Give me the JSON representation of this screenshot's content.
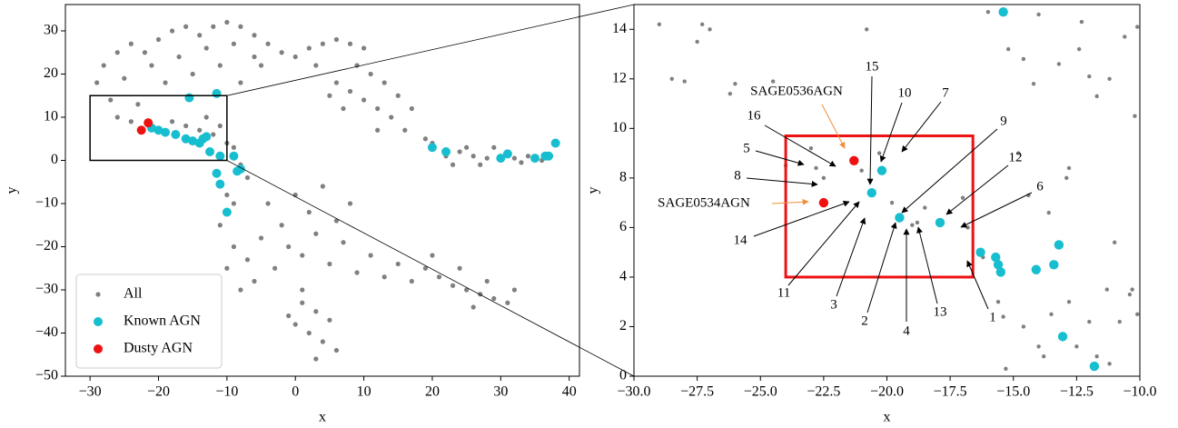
{
  "chart_data": [
    {
      "type": "scatter",
      "xlabel": "x",
      "ylabel": "y",
      "xlim": [
        -33.6,
        41.5
      ],
      "ylim": [
        -50,
        36.1
      ],
      "xticks": [
        {
          "value": -30,
          "label": "−30"
        },
        {
          "value": -20,
          "label": "−20"
        },
        {
          "value": -10,
          "label": "−10"
        },
        0,
        10,
        20,
        30,
        40
      ],
      "yticks": [
        {
          "value": -50,
          "label": "−50"
        },
        {
          "value": -40,
          "label": "−40"
        },
        {
          "value": -30,
          "label": "−30"
        },
        {
          "value": -20,
          "label": "−20"
        },
        {
          "value": -10,
          "label": "−10"
        },
        0,
        10,
        20,
        30
      ],
      "legend": "lower left",
      "series": [
        {
          "name": "All",
          "color": "#808080",
          "x": [
            -28,
            -26,
            -24,
            -22,
            -20,
            -18,
            -16,
            -14,
            -12,
            -10,
            -8,
            -6,
            -4,
            -2,
            0,
            2,
            4,
            6,
            8,
            10,
            -25,
            -21,
            -17,
            -13,
            -9,
            -5,
            -11,
            -15,
            -19,
            -27,
            -29,
            -23,
            -8,
            -6,
            3,
            -26,
            -24,
            -18,
            -16,
            -14,
            -12,
            -10,
            -9,
            -11,
            -13,
            -8,
            -7,
            -10,
            -9,
            -11,
            6,
            8,
            10,
            12,
            14,
            11,
            9,
            13,
            15,
            17,
            7,
            5,
            12,
            16,
            19,
            22,
            24,
            26,
            28,
            30,
            32,
            34,
            36,
            25,
            27,
            31,
            33,
            20,
            23,
            29,
            -11,
            -9,
            -7,
            -5,
            -3,
            -1,
            1,
            3,
            5,
            7,
            9,
            11,
            13,
            -10,
            -6,
            -2,
            2,
            6,
            0,
            4,
            8,
            -4,
            -8,
            15,
            17,
            1,
            3,
            5,
            2,
            4,
            0,
            6,
            3,
            1,
            -1,
            19,
            21,
            23,
            25,
            27,
            29,
            31,
            20,
            24,
            28,
            26,
            32
          ],
          "y": [
            22,
            25,
            27,
            25,
            28,
            30,
            31,
            29,
            31,
            32,
            31,
            29,
            27,
            25,
            24,
            26,
            27,
            28,
            27,
            26,
            19,
            22,
            24,
            26,
            27,
            22,
            22,
            20,
            18,
            14,
            18,
            13,
            18,
            24,
            22,
            10,
            9,
            9,
            8,
            7,
            6,
            4,
            3,
            8,
            10,
            -1,
            -4,
            -8,
            -10,
            -6,
            18,
            16,
            14,
            12,
            10,
            20,
            22,
            18,
            15,
            12,
            12,
            15,
            7,
            7,
            5,
            1,
            2,
            1,
            0.5,
            1,
            0.5,
            1,
            0,
            3,
            -1,
            2,
            -0.5,
            4,
            -1,
            3,
            -15,
            -20,
            -23,
            -18,
            -25,
            -20,
            -22,
            -17,
            -24,
            -19,
            -26,
            -22,
            -27,
            -25,
            -28,
            -15,
            -12,
            -14,
            -8,
            -6,
            -10,
            -10,
            -30,
            -24,
            -28,
            -33,
            -35,
            -37,
            -40,
            -42,
            -38,
            -44,
            -46,
            -30,
            -36,
            -25,
            -27,
            -29,
            -30,
            -31,
            -32,
            -33,
            -22,
            -25,
            -28,
            -34,
            -30
          ]
        },
        {
          "name": "Known AGN",
          "color": "#17becf",
          "x": [
            -15.5,
            -11.5,
            -21,
            -20,
            -19,
            -17.5,
            -16,
            -15,
            -14,
            -13.5,
            -13,
            -12.5,
            -11,
            -9,
            -8,
            -8.5,
            -11.5,
            -11,
            -10,
            20,
            22,
            30,
            31,
            35,
            36.5,
            37,
            38
          ],
          "y": [
            14.5,
            15.5,
            7.5,
            7,
            6.5,
            6,
            5,
            4.5,
            4,
            5,
            5.5,
            2,
            1,
            1,
            -2,
            -2.5,
            -3,
            -5.5,
            -12,
            3,
            2,
            0.5,
            1.5,
            0.5,
            1,
            1,
            4
          ]
        },
        {
          "name": "Dusty AGN",
          "color": "#ee1111",
          "x": [
            -22.5,
            -21.5
          ],
          "y": [
            7,
            8.7
          ]
        }
      ]
    },
    {
      "type": "scatter",
      "xlabel": "x",
      "ylabel": "y",
      "xlim": [
        -30,
        -10
      ],
      "ylim": [
        0,
        15
      ],
      "xticks": [
        {
          "value": -30,
          "label": "−30.0"
        },
        {
          "value": -27.5,
          "label": "−27.5"
        },
        {
          "value": -25,
          "label": "−25.0"
        },
        {
          "value": -22.5,
          "label": "−22.5"
        },
        {
          "value": -20,
          "label": "−20.0"
        },
        {
          "value": -17.5,
          "label": "−17.5"
        },
        {
          "value": -15,
          "label": "−15.0"
        },
        {
          "value": -12.5,
          "label": "−12.5"
        },
        {
          "value": -10,
          "label": "−10.0"
        }
      ],
      "yticks": [
        0,
        2,
        4,
        6,
        8,
        10,
        12,
        14
      ],
      "highlight": {
        "x": [
          -24,
          -16.6
        ],
        "y": [
          4,
          9.7
        ],
        "color": "#ee1111"
      },
      "annotations": [
        "SAGE0536AGN",
        "SAGE0534AGN",
        "16",
        "5",
        "8",
        "15",
        "10",
        "7",
        "9",
        "12",
        "6",
        "14",
        "11",
        "3",
        "2",
        "4",
        "13",
        "1"
      ],
      "series": [
        {
          "name": "All",
          "color": "#808080",
          "x": [
            -29,
            -28.5,
            -28,
            -27.5,
            -27.3,
            -27,
            -26.2,
            -26,
            -24.5,
            -23,
            -22.8,
            -24,
            -22.5,
            -21,
            -20.8,
            -20.3,
            -19.8,
            -19,
            -18.8,
            -18.5,
            -17,
            -16.8,
            -16.2,
            -15.6,
            -15.4,
            -14.6,
            -14,
            -13.8,
            -13.5,
            -12.8,
            -12.5,
            -12,
            -11.3,
            -10.8,
            -10.3,
            -10.1,
            -12.8,
            -12.9,
            -12.4,
            -12,
            -11.7,
            -11.2,
            -10.6,
            -10.1,
            -11,
            -10.2,
            -12.3,
            -15.2,
            -14.6,
            -14,
            -14.2,
            -13.2,
            -16,
            -15.3,
            -11.7,
            -11.2,
            -14.8,
            -13.6,
            -10.4,
            -14.4
          ],
          "y": [
            14.2,
            12,
            11.9,
            13.5,
            14.2,
            14,
            11.4,
            11.8,
            11.9,
            9.2,
            8.4,
            8.5,
            8,
            8.3,
            14,
            9,
            7,
            6.1,
            6.2,
            6.8,
            7.2,
            6,
            4.8,
            3,
            2.4,
            2,
            1.2,
            0.8,
            2.5,
            3,
            1.2,
            2.2,
            3.5,
            2.2,
            3.5,
            2.5,
            8.4,
            8,
            13.2,
            12.1,
            11.3,
            12,
            13.7,
            14.1,
            5.4,
            10.5,
            14.3,
            13.2,
            12.8,
            14.6,
            11.8,
            12.6,
            14.7,
            0.3,
            0.8,
            0.5,
            9,
            6.6,
            3.3,
            7.3
          ]
        },
        {
          "name": "Known AGN",
          "color": "#17becf",
          "x": [
            -15.4,
            -20.6,
            -20.2,
            -19.5,
            -17.9,
            -16.3,
            -15.7,
            -15.6,
            -15.5,
            -14.1,
            -13.4,
            -13.2,
            -13.05,
            -11.8
          ],
          "y": [
            14.7,
            7.4,
            8.3,
            6.4,
            6.2,
            5,
            4.8,
            4.5,
            4.2,
            4.3,
            4.5,
            5.3,
            1.6,
            0.4
          ]
        },
        {
          "name": "Dusty AGN",
          "color": "#ee1111",
          "x": [
            -22.5,
            -21.3
          ],
          "y": [
            7,
            8.7
          ]
        }
      ]
    }
  ]
}
